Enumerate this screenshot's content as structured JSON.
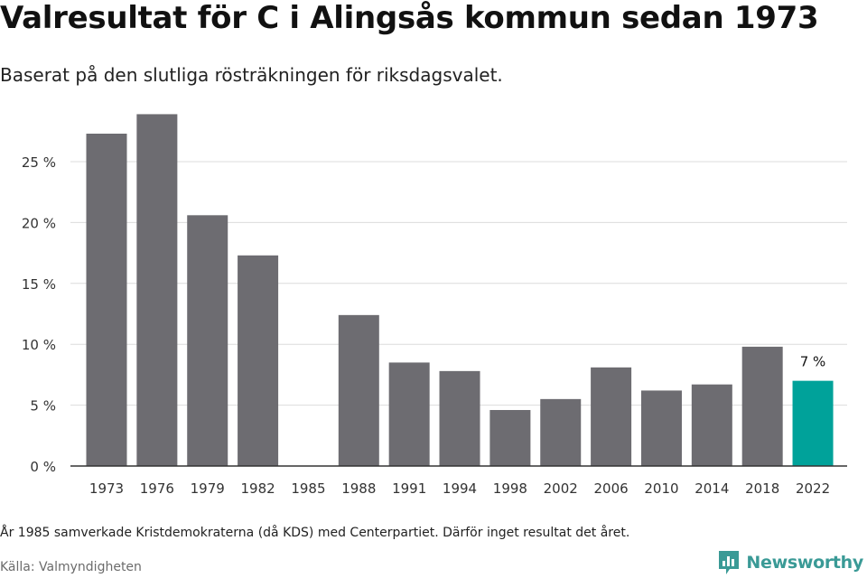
{
  "header": {
    "title": "Valresultat för C i Alingsås kommun sedan 1973",
    "subtitle": "Baserat på den slutliga rösträkningen för riksdagsvalet."
  },
  "footer": {
    "note": "År 1985 samverkade Kristdemokraterna (då KDS) med Centerpartiet. Därför inget resultat det året.",
    "source": "Källa: Valmyndigheten",
    "brand": "Newsworthy",
    "brand_icon": "bar-chart-logo-icon"
  },
  "colors": {
    "bar": "#6d6c71",
    "highlight": "#00a29a",
    "grid": "#dcdcdc",
    "axis": "#333333",
    "brand": "#3a9a96"
  },
  "chart_data": {
    "type": "bar",
    "categories": [
      "1973",
      "1976",
      "1979",
      "1982",
      "1985",
      "1988",
      "1991",
      "1994",
      "1998",
      "2002",
      "2006",
      "2010",
      "2014",
      "2018",
      "2022"
    ],
    "values": [
      27.3,
      28.9,
      20.6,
      17.3,
      null,
      12.4,
      8.5,
      7.8,
      4.6,
      5.5,
      8.1,
      6.2,
      6.7,
      9.8,
      7.0
    ],
    "ylim": [
      0,
      30
    ],
    "yticks": [
      0,
      5,
      10,
      15,
      20,
      25
    ],
    "ytick_labels": [
      "0 %",
      "5 %",
      "10 %",
      "15 %",
      "20 %",
      "25 %"
    ],
    "grid": true,
    "highlight_category": "2022",
    "annotations": [
      {
        "category": "2022",
        "text": "7 %"
      }
    ],
    "title": "",
    "xlabel": "",
    "ylabel": ""
  }
}
